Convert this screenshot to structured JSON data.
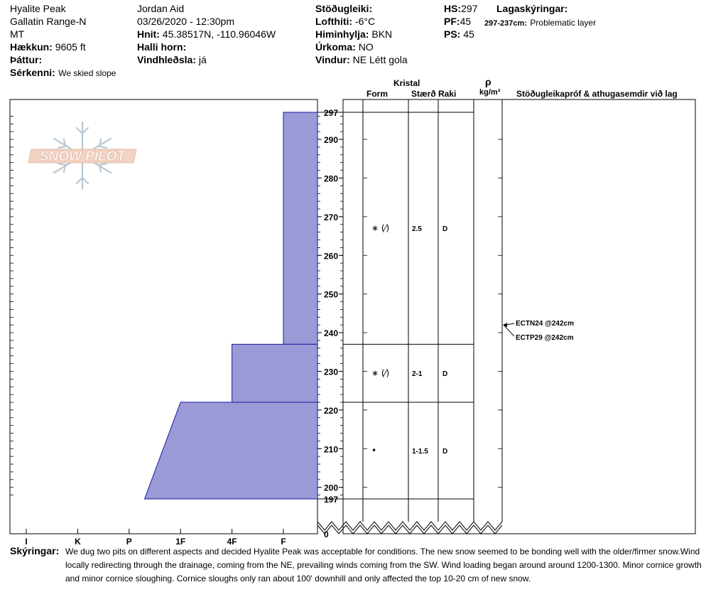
{
  "header": {
    "site": "Hyalite Peak",
    "range": "Gallatin Range-N",
    "state": "MT",
    "elevation_label": "Hækkun:",
    "elevation_value": "9605 ft",
    "aspect_label": "Þáttur:",
    "features_label": "Sérkenni:",
    "features_value": "We skied slope",
    "observer": "Jordan Aid",
    "datetime": "03/26/2020 - 12:30pm",
    "coords_label": "Hnit:",
    "coords_value": "45.38517N, -110.96046W",
    "slope_label": "Halli horn:",
    "wind_loading_label": "Vindhleðsla:",
    "wind_loading_value": "já",
    "stability_label": "Stöðugleiki:",
    "air_temp_label": "Lofthiti:",
    "air_temp_value": "-6°C",
    "sky_label": "Himinhylja:",
    "sky_value": "BKN",
    "precip_label": "Úrkoma:",
    "precip_value": "NO",
    "wind_label": "Vindur:",
    "wind_value": "NE Létt gola",
    "hs_label": "HS:",
    "hs_value": "297",
    "pf_label": "PF:",
    "pf_value": "45",
    "ps_label": "PS:",
    "ps_value": "45",
    "layer_notes_label": "Lagaskýringar:",
    "layer_note_range": "297-237cm:",
    "layer_note_text": "Problematic layer"
  },
  "logo": {
    "text": "SNOW PILOT"
  },
  "columns": {
    "crystal": "Kristal",
    "form": "Form",
    "size": "Stærð",
    "moisture": "Raki",
    "density_symbol": "ρ",
    "density_unit": "kg/m³",
    "stability_notes": "Stöðugleikapróf & athugasemdir við lag"
  },
  "chart_data": {
    "type": "area",
    "title": "",
    "xlabel": "",
    "ylabel": "",
    "hardness_scale": [
      "I",
      "K",
      "P",
      "1F",
      "4F",
      "F"
    ],
    "y_ticks": [
      200,
      210,
      220,
      230,
      240,
      250,
      260,
      270,
      280,
      290
    ],
    "y_zero_label": "0",
    "y_range": [
      197,
      297
    ],
    "layers": [
      {
        "top": 297,
        "bottom": 237,
        "hardness": "F",
        "form": "∗ (⁄)",
        "size": "2.5",
        "moisture": "D"
      },
      {
        "top": 237,
        "bottom": 222,
        "hardness": "4F",
        "form": "∗ (⁄)",
        "size": "2-1",
        "moisture": "D"
      },
      {
        "top": 222,
        "bottom": 197,
        "hardness_top": "1F",
        "hardness_bottom": "P+",
        "form": "•",
        "size": "1-1.5",
        "moisture": "D"
      }
    ],
    "boundary_labels": [
      "297",
      "197"
    ],
    "fill_color": "#9b99d6",
    "stability_tests": [
      {
        "depth": 242,
        "label": "ECTN24 @242cm"
      },
      {
        "depth": 242,
        "label": "ECTP29 @242cm"
      }
    ]
  },
  "comments": {
    "label": "Skýringar:",
    "line1": "We dug two pits on different aspects and decided Hyalite Peak was acceptable for conditions. The new snow seemed to be bonding well with the older/firmer snow.Wind",
    "line2": "locally redirecting through the drainage, coming from the NE, prevailing winds coming from the SW. Wind loading began around around 1200-1300. Minor cornice growth",
    "line3": "and minor cornice sloughing. Cornice sloughs only ran about 100' downhill and only affected the top 10-20 cm of new snow."
  }
}
